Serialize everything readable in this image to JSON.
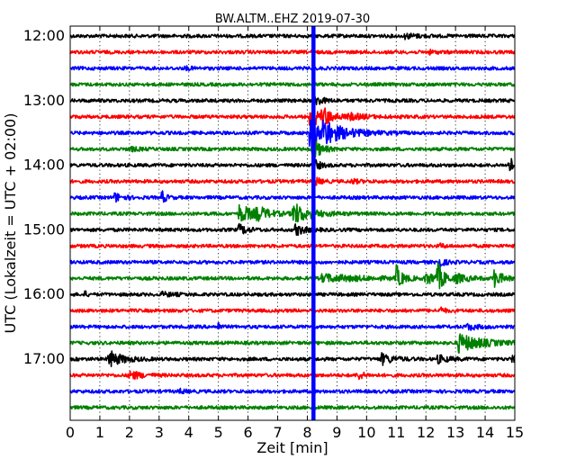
{
  "chart_data": {
    "type": "line",
    "title": "BW.ALTM..EHZ 2019-07-30",
    "xlabel": "Zeit  [min]",
    "ylabel": "UTC (Lokalzeit = UTC + 02:00)",
    "xlim": [
      0,
      15
    ],
    "x_ticks": [
      "0",
      "1",
      "2",
      "3",
      "4",
      "5",
      "6",
      "7",
      "8",
      "9",
      "10",
      "11",
      "12",
      "13",
      "14",
      "15"
    ],
    "y_tick_labels": [
      "12:00",
      "13:00",
      "14:00",
      "15:00",
      "16:00",
      "17:00"
    ],
    "grid": "vertical-dotted",
    "trace_colors": [
      "#000000",
      "#ff0000",
      "#0000ff",
      "#008000"
    ],
    "traces": [
      {
        "start": "12:00",
        "color": "#000000",
        "events": [
          {
            "t": 11.3,
            "amp": 0.6,
            "dur": 0.7
          }
        ]
      },
      {
        "start": "12:15",
        "color": "#ff0000",
        "events": [
          {
            "t": 12.1,
            "amp": 0.4,
            "dur": 0.4
          }
        ]
      },
      {
        "start": "12:30",
        "color": "#0000ff",
        "events": [
          {
            "t": 3.9,
            "amp": 0.45,
            "dur": 0.3
          }
        ]
      },
      {
        "start": "12:45",
        "color": "#008000",
        "events": []
      },
      {
        "start": "13:00",
        "color": "#000000",
        "events": [
          {
            "t": 8.2,
            "amp": 1.8,
            "dur": 0.4
          }
        ]
      },
      {
        "start": "13:15",
        "color": "#ff0000",
        "events": [
          {
            "t": 8.1,
            "amp": 5.0,
            "dur": 0.3
          },
          {
            "t": 8.5,
            "amp": 2.5,
            "dur": 0.6
          },
          {
            "t": 9.4,
            "amp": 0.7,
            "dur": 0.9
          }
        ]
      },
      {
        "start": "13:30",
        "color": "#0000ff",
        "events": [
          {
            "t": 8.1,
            "amp": 8.0,
            "dur": 0.3
          },
          {
            "t": 8.5,
            "amp": 3.5,
            "dur": 1.2
          }
        ]
      },
      {
        "start": "13:45",
        "color": "#008000",
        "events": [
          {
            "t": 8.2,
            "amp": 3.0,
            "dur": 0.4
          },
          {
            "t": 2.0,
            "amp": 0.5,
            "dur": 0.5
          }
        ]
      },
      {
        "start": "14:00",
        "color": "#000000",
        "events": [
          {
            "t": 8.2,
            "amp": 2.0,
            "dur": 0.3
          },
          {
            "t": 14.8,
            "amp": 2.0,
            "dur": 0.5
          }
        ]
      },
      {
        "start": "14:15",
        "color": "#ff0000",
        "events": [
          {
            "t": 8.2,
            "amp": 1.5,
            "dur": 0.3
          },
          {
            "t": 9.5,
            "amp": 0.5,
            "dur": 0.4
          }
        ]
      },
      {
        "start": "14:30",
        "color": "#0000ff",
        "events": [
          {
            "t": 1.5,
            "amp": 1.2,
            "dur": 0.4
          },
          {
            "t": 3.1,
            "amp": 1.8,
            "dur": 0.2
          }
        ]
      },
      {
        "start": "14:45",
        "color": "#008000",
        "events": [
          {
            "t": 5.7,
            "amp": 2.5,
            "dur": 0.8
          },
          {
            "t": 6.3,
            "amp": 1.5,
            "dur": 0.6
          },
          {
            "t": 7.5,
            "amp": 3.0,
            "dur": 0.9
          }
        ]
      },
      {
        "start": "15:00",
        "color": "#000000",
        "events": [
          {
            "t": 5.7,
            "amp": 1.5,
            "dur": 0.4
          },
          {
            "t": 7.6,
            "amp": 1.5,
            "dur": 0.5
          }
        ]
      },
      {
        "start": "15:15",
        "color": "#ff0000",
        "events": [
          {
            "t": 12.5,
            "amp": 0.6,
            "dur": 0.2
          }
        ]
      },
      {
        "start": "15:30",
        "color": "#0000ff",
        "events": [
          {
            "t": 12.4,
            "amp": 1.5,
            "dur": 0.3
          }
        ]
      },
      {
        "start": "15:45",
        "color": "#008000",
        "events": [
          {
            "t": 8.5,
            "amp": 1.0,
            "dur": 2.2
          },
          {
            "t": 11.0,
            "amp": 3.5,
            "dur": 0.3
          },
          {
            "t": 12.0,
            "amp": 1.5,
            "dur": 0.8
          },
          {
            "t": 12.4,
            "amp": 3.5,
            "dur": 0.3
          },
          {
            "t": 13.0,
            "amp": 1.0,
            "dur": 0.6
          },
          {
            "t": 14.3,
            "amp": 2.5,
            "dur": 0.4
          }
        ]
      },
      {
        "start": "16:00",
        "color": "#000000",
        "events": [
          {
            "t": 0.5,
            "amp": 0.8,
            "dur": 0.1
          },
          {
            "t": 3.1,
            "amp": 0.5,
            "dur": 0.6
          }
        ]
      },
      {
        "start": "16:15",
        "color": "#ff0000",
        "events": [
          {
            "t": 12.5,
            "amp": 1.0,
            "dur": 0.2
          }
        ]
      },
      {
        "start": "16:30",
        "color": "#0000ff",
        "events": [
          {
            "t": 5.0,
            "amp": 1.2,
            "dur": 0.1
          },
          {
            "t": 13.4,
            "amp": 0.8,
            "dur": 0.5
          }
        ]
      },
      {
        "start": "16:45",
        "color": "#008000",
        "events": [
          {
            "t": 13.1,
            "amp": 2.5,
            "dur": 1.2
          }
        ]
      },
      {
        "start": "17:00",
        "color": "#000000",
        "events": [
          {
            "t": 1.3,
            "amp": 2.3,
            "dur": 0.7
          },
          {
            "t": 10.5,
            "amp": 1.5,
            "dur": 0.6
          },
          {
            "t": 12.4,
            "amp": 1.0,
            "dur": 0.6
          },
          {
            "t": 14.9,
            "amp": 1.0,
            "dur": 0.4
          }
        ]
      },
      {
        "start": "17:15",
        "color": "#ff0000",
        "events": [
          {
            "t": 2.0,
            "amp": 1.2,
            "dur": 0.6
          },
          {
            "t": 9.7,
            "amp": 1.2,
            "dur": 0.3
          }
        ]
      },
      {
        "start": "17:30",
        "color": "#0000ff",
        "events": [
          {
            "t": 3.7,
            "amp": 0.5,
            "dur": 0.3
          }
        ]
      },
      {
        "start": "17:45",
        "color": "#008000",
        "events": []
      }
    ],
    "vertical_spike": {
      "t": 8.2,
      "color": "#0000ff",
      "from": "12:00",
      "to": "18:00"
    }
  }
}
